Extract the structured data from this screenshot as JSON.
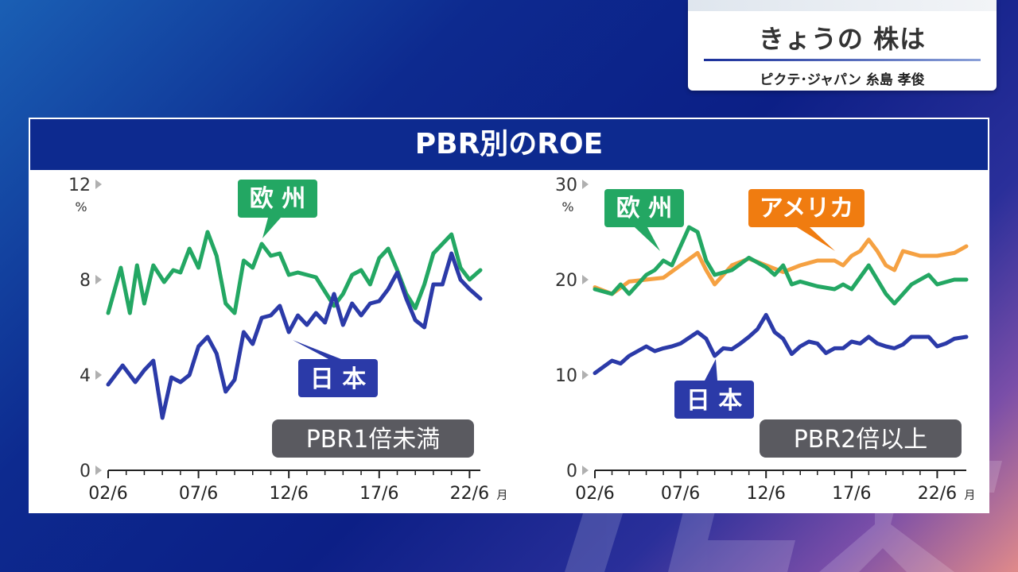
{
  "colors": {
    "europe": "#23a763",
    "japan": "#2b3aa8",
    "america": "#f5a142",
    "header": "#0d2a8f",
    "badge": "#5a5a60",
    "america_label": "#f07c10"
  },
  "title_card": {
    "title": "きょうの 株は",
    "subtitle": "ピクテ･ジャパン 糸島 孝俊"
  },
  "panel": {
    "title": "PBR別のROE"
  },
  "chart_data": [
    {
      "type": "line",
      "name": "PBR1倍未満",
      "badge": "PBR1倍未満",
      "ylim": [
        0,
        12
      ],
      "yticks": [
        "12",
        "8",
        "4",
        "0"
      ],
      "yunit": "%",
      "xticks": [
        "02/6",
        "07/6",
        "12/6",
        "17/6",
        "22/6"
      ],
      "xunit": "月",
      "x_start": 2002.5,
      "x_end": 2023.1,
      "series": [
        {
          "name": "欧州",
          "color": "europe",
          "x": [
            2002.5,
            2003.2,
            2003.7,
            2004.1,
            2004.5,
            2005.0,
            2005.6,
            2006.1,
            2006.5,
            2007.0,
            2007.5,
            2008.0,
            2008.5,
            2009.0,
            2009.5,
            2010.0,
            2010.5,
            2011.0,
            2011.5,
            2012.0,
            2012.5,
            2013.0,
            2013.5,
            2014.0,
            2014.5,
            2015.0,
            2015.5,
            2016.0,
            2016.5,
            2017.0,
            2017.5,
            2018.0,
            2018.5,
            2019.0,
            2019.5,
            2020.0,
            2020.5,
            2021.0,
            2021.5,
            2022.0,
            2022.5,
            2023.1
          ],
          "values": [
            6.6,
            8.5,
            6.6,
            8.6,
            7.0,
            8.6,
            7.9,
            8.4,
            8.3,
            9.3,
            8.5,
            10.0,
            9.0,
            7.0,
            6.6,
            8.8,
            8.5,
            9.5,
            9.0,
            9.1,
            8.2,
            8.3,
            8.2,
            8.1,
            7.5,
            6.9,
            7.4,
            8.2,
            8.4,
            7.8,
            8.9,
            9.3,
            8.4,
            7.4,
            6.8,
            7.8,
            9.1,
            9.5,
            9.9,
            8.5,
            8.0,
            8.4
          ]
        },
        {
          "name": "日本",
          "color": "japan",
          "x": [
            2002.5,
            2003.3,
            2004.0,
            2004.5,
            2005.0,
            2005.5,
            2006.0,
            2006.5,
            2007.0,
            2007.5,
            2008.0,
            2008.5,
            2009.0,
            2009.5,
            2010.0,
            2010.5,
            2011.0,
            2011.5,
            2012.0,
            2012.5,
            2013.0,
            2013.5,
            2014.0,
            2014.5,
            2015.0,
            2015.5,
            2016.0,
            2016.5,
            2017.0,
            2017.5,
            2018.0,
            2018.5,
            2019.0,
            2019.5,
            2020.0,
            2020.5,
            2021.0,
            2021.5,
            2022.0,
            2022.5,
            2023.1
          ],
          "values": [
            3.6,
            4.4,
            3.7,
            4.2,
            4.6,
            2.2,
            3.9,
            3.7,
            4.0,
            5.2,
            5.6,
            4.9,
            3.3,
            3.8,
            5.8,
            5.3,
            6.4,
            6.5,
            6.9,
            5.8,
            6.5,
            6.1,
            6.6,
            6.2,
            7.4,
            6.1,
            7.0,
            6.5,
            7.0,
            7.1,
            7.6,
            8.3,
            7.2,
            6.3,
            6.0,
            7.8,
            7.8,
            9.1,
            8.0,
            7.6,
            7.2
          ]
        }
      ],
      "labels": {
        "europe": "欧 州",
        "japan": "日 本"
      }
    },
    {
      "type": "line",
      "name": "PBR2倍以上",
      "badge": "PBR2倍以上",
      "ylim": [
        0,
        30
      ],
      "yticks": [
        "30",
        "20",
        "10",
        "0"
      ],
      "yunit": "%",
      "xticks": [
        "02/6",
        "07/6",
        "12/6",
        "17/6",
        "22/6"
      ],
      "xunit": "月",
      "x_start": 2002.5,
      "x_end": 2024.2,
      "series": [
        {
          "name": "アメリカ",
          "color": "america",
          "x": [
            2002.5,
            2003.5,
            2004.5,
            2005.5,
            2006.5,
            2007.5,
            2008.5,
            2009.0,
            2009.5,
            2010.0,
            2010.5,
            2011.5,
            2012.5,
            2013.5,
            2014.5,
            2015.5,
            2016.5,
            2017.0,
            2017.5,
            2018.0,
            2018.5,
            2019.0,
            2019.5,
            2020.0,
            2020.5,
            2021.5,
            2022.5,
            2023.5,
            2024.2
          ],
          "values": [
            19.2,
            18.5,
            19.8,
            20.0,
            20.2,
            21.5,
            22.8,
            21.0,
            19.5,
            20.5,
            21.5,
            22.2,
            21.5,
            20.8,
            21.5,
            22.0,
            22.0,
            21.5,
            22.5,
            23.0,
            24.2,
            23.0,
            21.5,
            21.0,
            23.0,
            22.5,
            22.5,
            22.8,
            23.5
          ]
        },
        {
          "name": "欧州",
          "color": "europe",
          "x": [
            2002.5,
            2003.5,
            2004.0,
            2004.5,
            2005.5,
            2006.0,
            2006.5,
            2007.0,
            2007.5,
            2008.0,
            2008.5,
            2009.0,
            2009.5,
            2010.5,
            2011.5,
            2012.5,
            2013.0,
            2013.5,
            2014.0,
            2014.5,
            2015.5,
            2016.5,
            2017.0,
            2017.5,
            2018.5,
            2019.5,
            2020.0,
            2020.5,
            2021.0,
            2022.0,
            2022.5,
            2023.5,
            2024.2
          ],
          "values": [
            19.0,
            18.5,
            19.5,
            18.5,
            20.5,
            21.0,
            22.0,
            21.5,
            23.5,
            25.5,
            25.0,
            22.0,
            20.5,
            21.0,
            22.3,
            21.3,
            20.5,
            21.5,
            19.5,
            19.8,
            19.3,
            19.0,
            19.5,
            19.0,
            21.5,
            18.5,
            17.5,
            18.5,
            19.5,
            20.5,
            19.5,
            20.0,
            20.0
          ]
        },
        {
          "name": "日本",
          "color": "japan",
          "x": [
            2002.5,
            2003.5,
            2004.0,
            2004.5,
            2005.5,
            2006.0,
            2006.5,
            2007.0,
            2007.5,
            2008.5,
            2009.0,
            2009.5,
            2010.0,
            2010.5,
            2011.0,
            2011.5,
            2012.0,
            2012.5,
            2013.0,
            2013.5,
            2014.0,
            2014.5,
            2015.0,
            2015.5,
            2016.0,
            2016.5,
            2017.0,
            2017.5,
            2018.0,
            2018.5,
            2019.0,
            2019.5,
            2020.0,
            2020.5,
            2021.0,
            2021.5,
            2022.0,
            2022.5,
            2023.0,
            2023.5,
            2024.2
          ],
          "values": [
            10.2,
            11.5,
            11.2,
            12.0,
            13.0,
            12.5,
            12.8,
            13.0,
            13.3,
            14.5,
            13.8,
            12.0,
            12.8,
            12.7,
            13.3,
            14.0,
            14.8,
            16.3,
            14.5,
            13.8,
            12.2,
            13.0,
            13.5,
            13.3,
            12.3,
            12.8,
            12.8,
            13.5,
            13.3,
            14.0,
            13.3,
            13.0,
            12.8,
            13.2,
            14.0,
            14.0,
            14.0,
            13.0,
            13.3,
            13.8,
            14.0
          ]
        }
      ],
      "labels": {
        "europe": "欧 州",
        "america": "アメリカ",
        "japan": "日 本"
      }
    }
  ]
}
